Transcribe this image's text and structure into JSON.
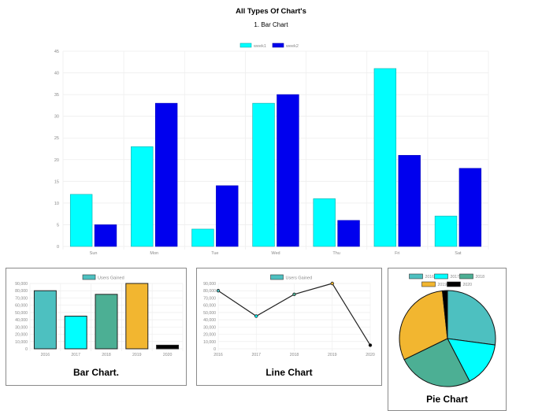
{
  "page": {
    "title": "All Types Of Chart's",
    "section_title": "1. Bar Chart"
  },
  "colors": {
    "week1": "#00ffff",
    "week2": "#0000ee",
    "grid": "#eeeeee",
    "tick": "#888888",
    "years": [
      "#4dc0c0",
      "#00ffff",
      "#4caf94",
      "#f2b630",
      "#000000"
    ]
  },
  "captions": {
    "bar": "Bar Chart.",
    "line": "Line Chart",
    "pie": "Pie Chart"
  },
  "chart_data": [
    {
      "id": "main-bar",
      "type": "bar",
      "title": "1. Bar Chart",
      "categories": [
        "Sun",
        "Mon",
        "Tue",
        "Wed",
        "Thu",
        "Fri",
        "Sat"
      ],
      "series": [
        {
          "name": "week1",
          "values": [
            12,
            23,
            4,
            33,
            11,
            41,
            7
          ]
        },
        {
          "name": "week2",
          "values": [
            5,
            33,
            14,
            35,
            6,
            21,
            18
          ]
        }
      ],
      "ylim": [
        0,
        45
      ],
      "yticks": [
        0,
        5,
        10,
        15,
        20,
        25,
        30,
        35,
        40,
        45
      ],
      "grid": true,
      "legend": "top-center",
      "xlabel": "",
      "ylabel": ""
    },
    {
      "id": "users-bar",
      "type": "bar",
      "title": "Bar Chart.",
      "categories": [
        "2016",
        "2017",
        "2018",
        "2019",
        "2020"
      ],
      "series": [
        {
          "name": "Users Gained",
          "values": [
            80000,
            45000,
            75000,
            90000,
            5000
          ]
        }
      ],
      "ylim": [
        0,
        90000
      ],
      "yticks": [
        "0",
        "10,000",
        "20,000",
        "30,000",
        "40,000",
        "50,000",
        "60,000",
        "70,000",
        "80,000",
        "90,000"
      ],
      "grid": true,
      "legend": "top-center"
    },
    {
      "id": "users-line",
      "type": "line",
      "title": "Line Chart",
      "categories": [
        "2016",
        "2017",
        "2018",
        "2019",
        "2020"
      ],
      "series": [
        {
          "name": "Users Gained",
          "values": [
            80000,
            45000,
            75000,
            90000,
            5000
          ]
        }
      ],
      "ylim": [
        0,
        90000
      ],
      "yticks": [
        "0",
        "10,000",
        "20,000",
        "30,000",
        "40,000",
        "50,000",
        "60,000",
        "70,000",
        "80,000",
        "90,000"
      ],
      "grid": true,
      "legend": "top-center"
    },
    {
      "id": "users-pie",
      "type": "pie",
      "title": "Pie Chart",
      "labels": [
        "2016",
        "2017",
        "2018",
        "2019",
        "2020"
      ],
      "values": [
        80000,
        45000,
        75000,
        90000,
        5000
      ],
      "legend": "top-center"
    }
  ]
}
